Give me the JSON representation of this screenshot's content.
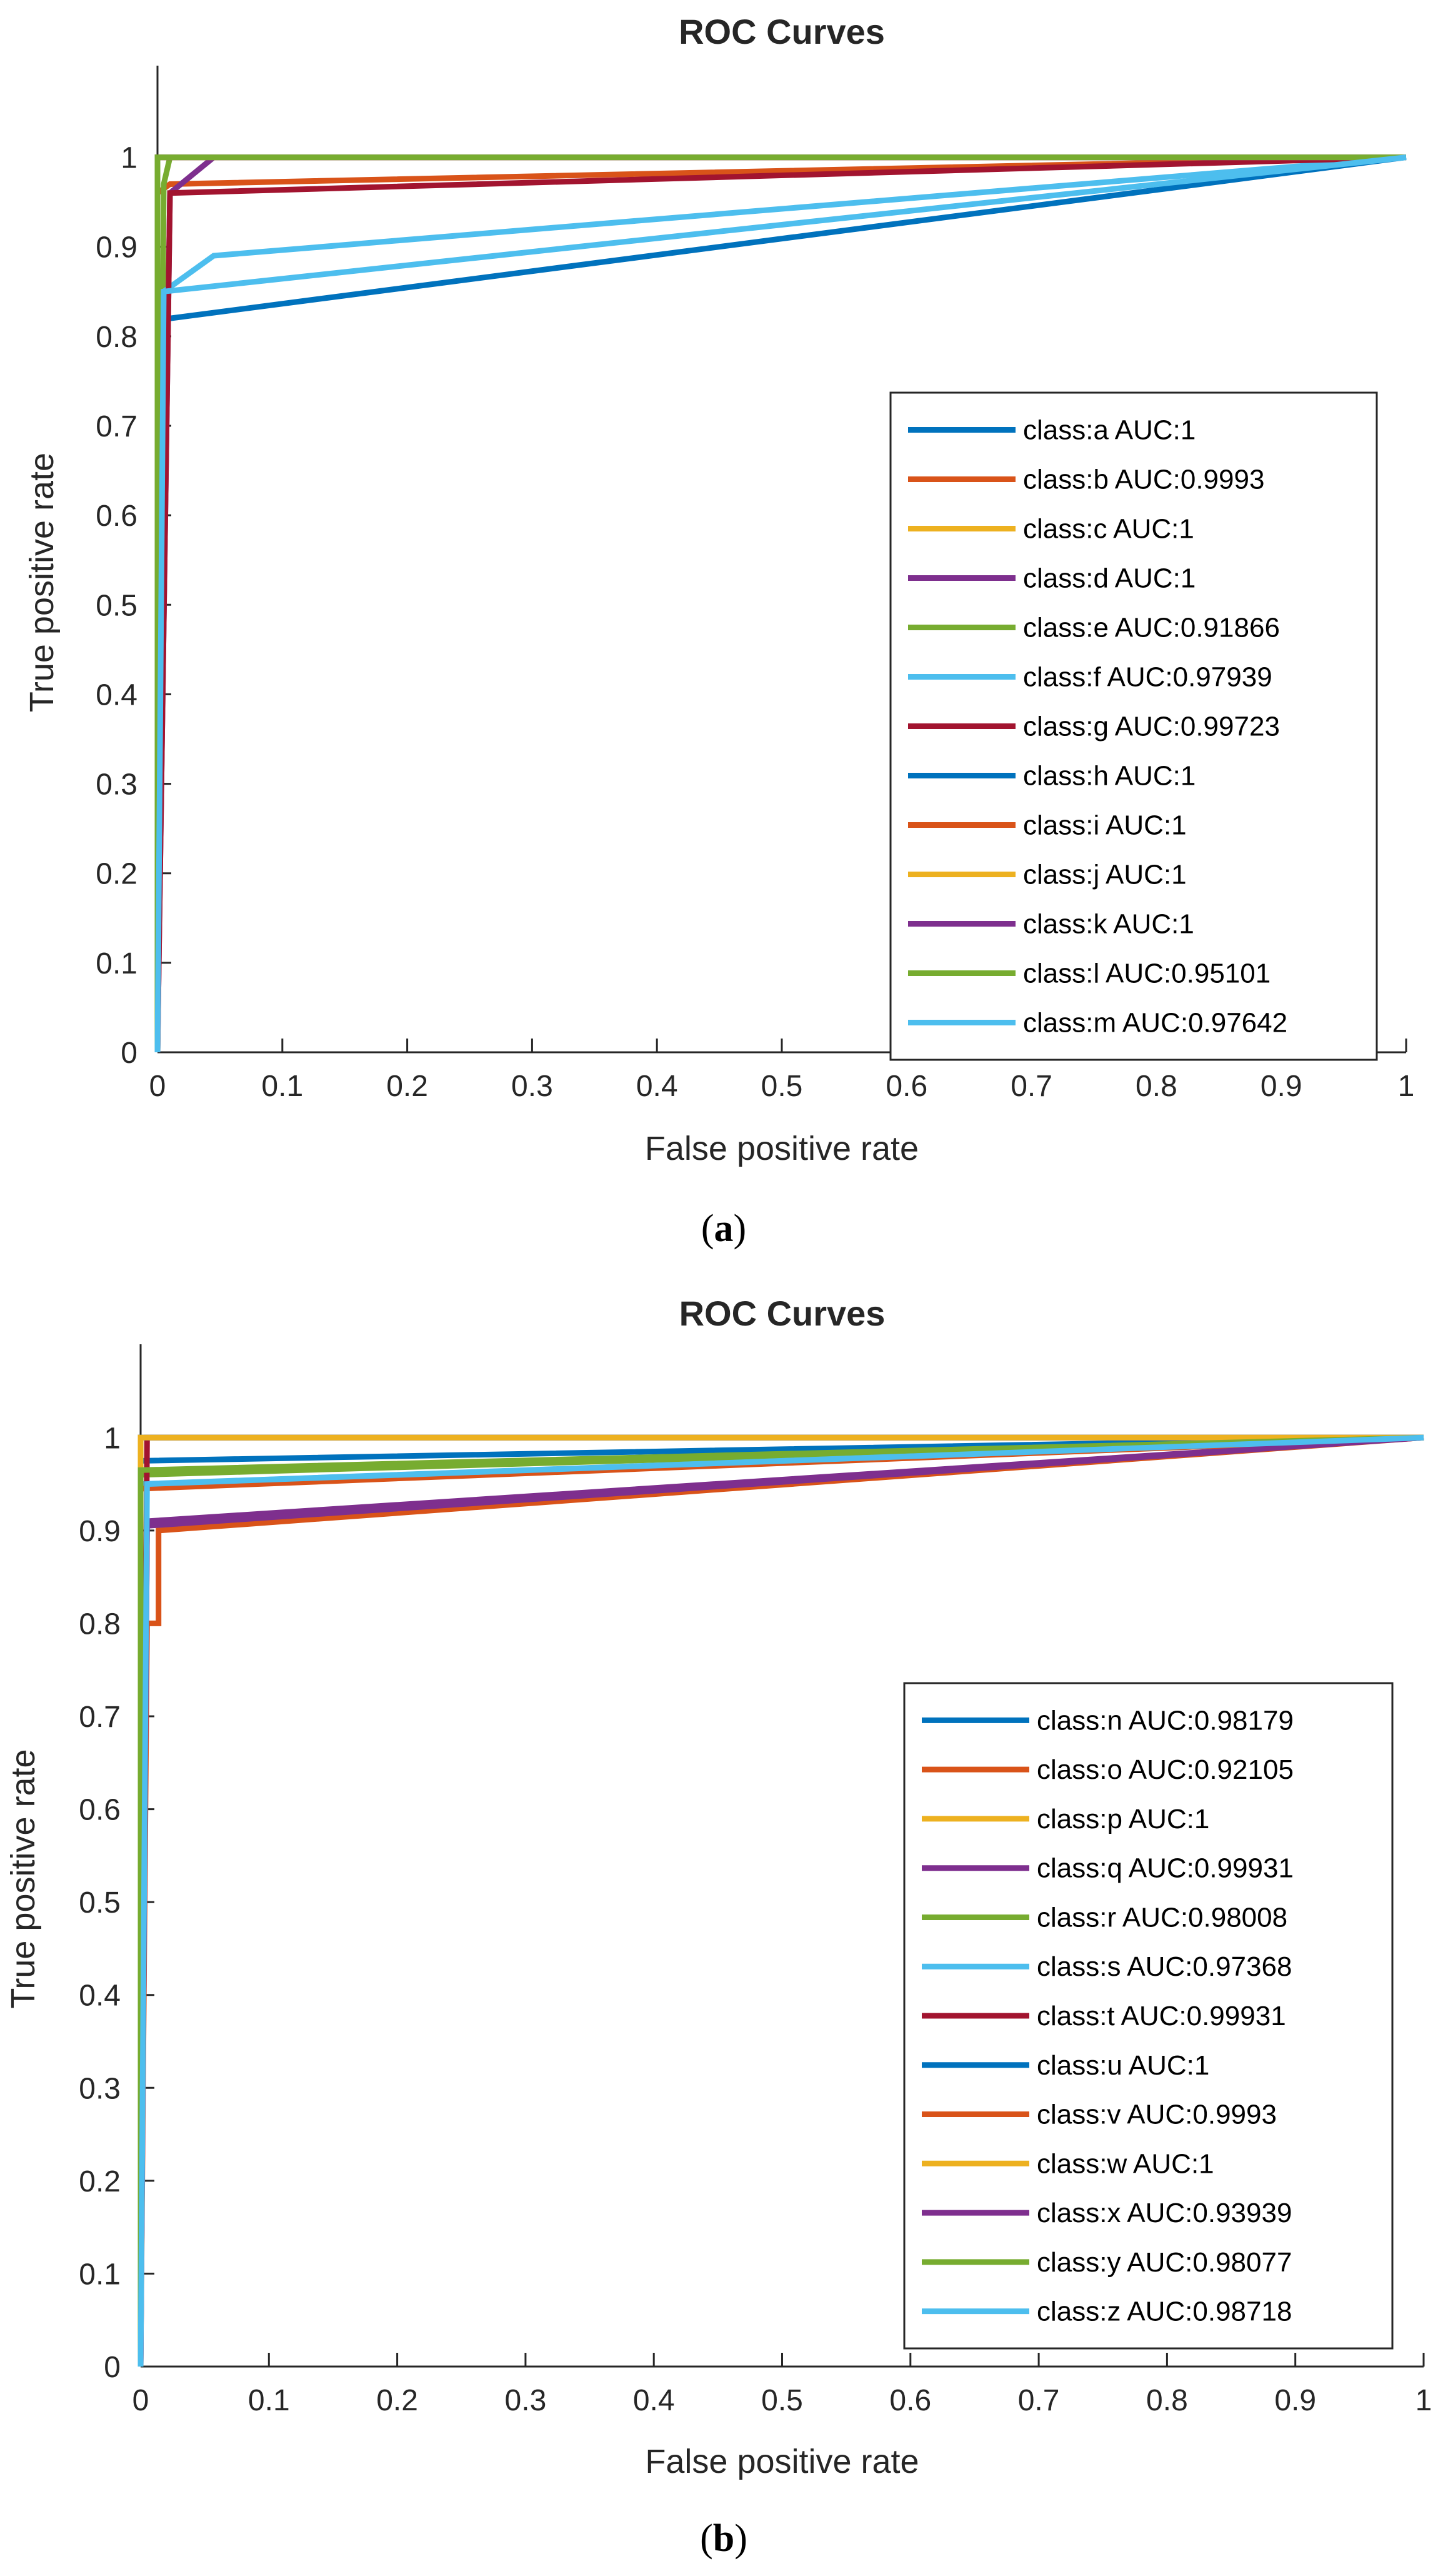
{
  "chart_data": [
    {
      "type": "line",
      "panel": "a",
      "caption": {
        "open": "(",
        "letter": "a",
        "close": ")"
      },
      "title": "ROC Curves",
      "xlabel": "False positive rate",
      "ylabel": "True positive rate",
      "xlim": [
        0,
        1
      ],
      "ylim": [
        0,
        1.05
      ],
      "xticks": [
        "0",
        "0.1",
        "0.2",
        "0.3",
        "0.4",
        "0.5",
        "0.6",
        "0.7",
        "0.8",
        "0.9",
        "1"
      ],
      "yticks": [
        "0",
        "0.1",
        "0.2",
        "0.3",
        "0.4",
        "0.5",
        "0.6",
        "0.7",
        "0.8",
        "0.9",
        "1"
      ],
      "legend_position": "right-center",
      "series": [
        {
          "name": "class:a AUC:1",
          "color": "#0072BD",
          "x": [
            0,
            0,
            0.01,
            1
          ],
          "y": [
            0,
            0.82,
            0.82,
            1
          ]
        },
        {
          "name": "class:b AUC:0.9993",
          "color": "#D95319",
          "x": [
            0,
            0,
            0.01,
            1
          ],
          "y": [
            0,
            0.96,
            0.97,
            1
          ]
        },
        {
          "name": "class:c AUC:1",
          "color": "#EDB120",
          "x": [
            0,
            0,
            1
          ],
          "y": [
            0,
            1,
            1
          ]
        },
        {
          "name": "class:d AUC:1",
          "color": "#7E2F8E",
          "x": [
            0,
            0.01,
            0.045,
            1
          ],
          "y": [
            0,
            0.96,
            1,
            1
          ]
        },
        {
          "name": "class:e AUC:0.91866",
          "color": "#77AC30",
          "x": [
            0,
            0.005,
            0.01,
            1
          ],
          "y": [
            0,
            0.97,
            1,
            1
          ]
        },
        {
          "name": "class:f AUC:0.97939",
          "color": "#4DBEEE",
          "x": [
            0,
            0.005,
            0.045,
            1
          ],
          "y": [
            0,
            0.85,
            0.89,
            1
          ]
        },
        {
          "name": "class:g AUC:0.99723",
          "color": "#A2142F",
          "x": [
            0,
            0.01,
            1
          ],
          "y": [
            0,
            0.96,
            1
          ]
        },
        {
          "name": "class:h AUC:1",
          "color": "#0072BD",
          "x": [
            0,
            0,
            1
          ],
          "y": [
            0,
            1,
            1
          ]
        },
        {
          "name": "class:i AUC:1",
          "color": "#D95319",
          "x": [
            0,
            0,
            1
          ],
          "y": [
            0,
            1,
            1
          ]
        },
        {
          "name": "class:j AUC:1",
          "color": "#EDB120",
          "x": [
            0,
            0,
            1
          ],
          "y": [
            0,
            1,
            1
          ]
        },
        {
          "name": "class:k AUC:1",
          "color": "#7E2F8E",
          "x": [
            0,
            0,
            1
          ],
          "y": [
            0,
            1,
            1
          ]
        },
        {
          "name": "class:l AUC:0.95101",
          "color": "#77AC30",
          "x": [
            0,
            0,
            1
          ],
          "y": [
            0,
            1,
            1
          ]
        },
        {
          "name": "class:m AUC:0.97642",
          "color": "#4DBEEE",
          "x": [
            0,
            0.005,
            1
          ],
          "y": [
            0,
            0.85,
            1
          ]
        }
      ]
    },
    {
      "type": "line",
      "panel": "b",
      "caption": {
        "open": "(",
        "letter": "b",
        "close": ")"
      },
      "title": "ROC Curves",
      "xlabel": "False positive rate",
      "ylabel": "True positive rate",
      "xlim": [
        0,
        1
      ],
      "ylim": [
        0,
        1.05
      ],
      "xticks": [
        "0",
        "0.1",
        "0.2",
        "0.3",
        "0.4",
        "0.5",
        "0.6",
        "0.7",
        "0.8",
        "0.9",
        "1"
      ],
      "yticks": [
        "0",
        "0.1",
        "0.2",
        "0.3",
        "0.4",
        "0.5",
        "0.6",
        "0.7",
        "0.8",
        "0.9",
        "1"
      ],
      "legend_position": "right-center",
      "series": [
        {
          "name": "class:n AUC:0.98179",
          "color": "#0072BD",
          "x": [
            0,
            0,
            1
          ],
          "y": [
            0,
            0.975,
            1
          ]
        },
        {
          "name": "class:o AUC:0.92105",
          "color": "#D95319",
          "x": [
            0,
            0.005,
            0.014,
            0.014,
            1
          ],
          "y": [
            0,
            0.8,
            0.8,
            0.9,
            1
          ]
        },
        {
          "name": "class:p AUC:1",
          "color": "#EDB120",
          "x": [
            0,
            0,
            1
          ],
          "y": [
            0,
            1,
            1
          ]
        },
        {
          "name": "class:q AUC:0.99931",
          "color": "#7E2F8E",
          "x": [
            0,
            0.005,
            1
          ],
          "y": [
            0,
            0.91,
            1
          ]
        },
        {
          "name": "class:r AUC:0.98008",
          "color": "#77AC30",
          "x": [
            0,
            0,
            1
          ],
          "y": [
            0,
            0.96,
            1
          ]
        },
        {
          "name": "class:s AUC:0.97368",
          "color": "#4DBEEE",
          "x": [
            0,
            0,
            1
          ],
          "y": [
            0,
            0.95,
            1
          ]
        },
        {
          "name": "class:t AUC:0.99931",
          "color": "#A2142F",
          "x": [
            0,
            0.005,
            1
          ],
          "y": [
            0,
            1,
            1
          ]
        },
        {
          "name": "class:u AUC:1",
          "color": "#0072BD",
          "x": [
            0,
            0,
            1
          ],
          "y": [
            0,
            1,
            1
          ]
        },
        {
          "name": "class:v AUC:0.9993",
          "color": "#D95319",
          "x": [
            0,
            0,
            1
          ],
          "y": [
            0,
            0.945,
            1
          ]
        },
        {
          "name": "class:w AUC:1",
          "color": "#EDB120",
          "x": [
            0,
            0,
            1
          ],
          "y": [
            0,
            1,
            1
          ]
        },
        {
          "name": "class:x AUC:0.93939",
          "color": "#7E2F8E",
          "x": [
            0,
            0.005,
            1
          ],
          "y": [
            0,
            0.905,
            1
          ]
        },
        {
          "name": "class:y AUC:0.98077",
          "color": "#77AC30",
          "x": [
            0,
            0,
            1
          ],
          "y": [
            0,
            0.965,
            1
          ]
        },
        {
          "name": "class:z AUC:0.98718",
          "color": "#4DBEEE",
          "x": [
            0,
            0.005,
            1
          ],
          "y": [
            0,
            0.95,
            1
          ]
        }
      ]
    }
  ]
}
